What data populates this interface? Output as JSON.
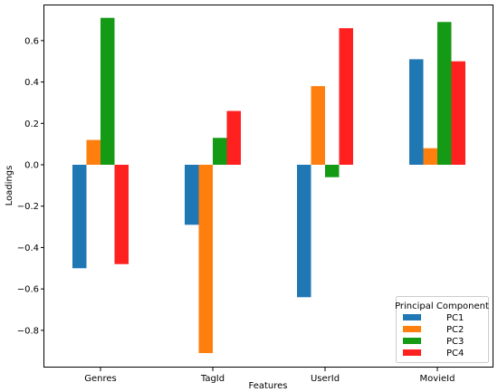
{
  "chart_data": {
    "type": "bar",
    "title": "",
    "xlabel": "Features",
    "ylabel": "Loadings",
    "categories": [
      "Genres",
      "TagId",
      "UserId",
      "MovieId"
    ],
    "series": [
      {
        "name": "PC1",
        "color": "#1f77b4",
        "values": [
          -0.5,
          -0.29,
          -0.64,
          0.51
        ]
      },
      {
        "name": "PC2",
        "color": "#ff7f0e",
        "values": [
          0.12,
          -0.91,
          0.38,
          0.08
        ]
      },
      {
        "name": "PC3",
        "color": "#159a15",
        "values": [
          0.71,
          0.13,
          -0.06,
          0.69
        ]
      },
      {
        "name": "PC4",
        "color": "#ff2020",
        "values": [
          -0.48,
          0.26,
          0.66,
          0.5
        ]
      }
    ],
    "ylim": [
      -0.98,
      0.77
    ],
    "yticks": [
      -0.8,
      -0.6,
      -0.4,
      -0.2,
      0.0,
      0.2,
      0.4,
      0.6
    ],
    "ytick_labels": [
      "−0.8",
      "−0.6",
      "−0.4",
      "−0.2",
      "0.0",
      "0.2",
      "0.4",
      "0.6"
    ],
    "grid": false,
    "legend": {
      "title": "Principal Component",
      "placement": "lower-right"
    }
  }
}
